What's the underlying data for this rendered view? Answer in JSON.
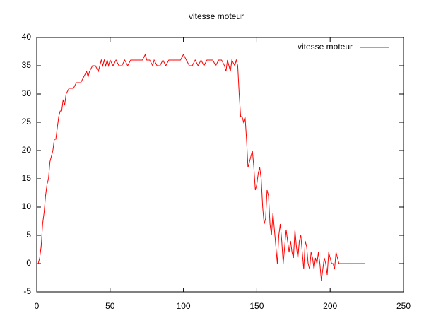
{
  "chart_data": {
    "type": "line",
    "title": "vitesse moteur",
    "x": [
      0,
      1,
      2,
      3,
      4,
      5,
      6,
      7,
      8,
      9,
      10,
      11,
      12,
      13,
      14,
      15,
      16,
      17,
      18,
      19,
      20,
      22,
      25,
      27,
      30,
      32,
      34,
      35,
      36,
      38,
      40,
      42,
      44,
      45,
      46,
      47,
      48,
      49,
      50,
      52,
      54,
      56,
      58,
      60,
      62,
      64,
      66,
      70,
      72,
      74,
      75,
      77,
      79,
      80,
      82,
      84,
      86,
      88,
      90,
      95,
      98,
      100,
      102,
      104,
      106,
      108,
      110,
      112,
      114,
      116,
      118,
      120,
      122,
      124,
      126,
      128,
      129,
      130,
      131,
      132,
      133,
      135,
      136,
      137,
      138,
      139,
      140,
      141,
      142,
      143,
      144,
      145,
      146,
      147,
      148,
      149,
      150,
      151,
      152,
      153,
      154,
      155,
      156,
      157,
      158,
      159,
      160,
      161,
      162,
      163,
      164,
      165,
      166,
      167,
      168,
      169,
      170,
      171,
      172,
      173,
      174,
      175,
      176,
      177,
      178,
      179,
      180,
      181,
      182,
      183,
      184,
      185,
      186,
      187,
      188,
      189,
      190,
      191,
      192,
      193,
      194,
      195,
      196,
      197,
      198,
      199,
      200,
      201,
      202,
      203,
      204,
      205,
      206,
      207,
      208,
      210,
      224
    ],
    "series": [
      {
        "name": "vitesse moteur",
        "color": "#ff0000",
        "values": [
          0,
          0,
          1,
          3,
          7,
          9,
          12,
          14,
          15,
          18,
          19,
          20,
          22,
          22,
          24,
          26,
          27,
          27,
          29,
          28,
          30,
          31,
          31,
          32,
          32,
          33,
          34,
          33,
          34,
          35,
          35,
          34,
          36,
          35,
          36,
          35,
          36,
          35,
          36,
          35,
          36,
          35,
          35,
          36,
          35,
          36,
          36,
          36,
          36,
          37,
          36,
          36,
          35,
          36,
          35,
          35,
          36,
          35,
          36,
          36,
          36,
          37,
          36,
          35,
          35,
          36,
          35,
          36,
          35,
          36,
          36,
          36,
          35,
          36,
          36,
          35,
          34,
          36,
          35,
          34,
          36,
          35,
          36,
          35,
          30,
          26,
          26,
          25,
          26,
          22,
          17,
          18,
          19,
          20,
          17,
          13,
          14,
          16,
          17,
          15,
          10,
          7,
          8,
          13,
          12,
          7,
          5,
          9,
          6,
          3,
          0,
          5,
          7,
          4,
          0,
          3,
          6,
          4,
          2,
          4,
          2,
          1,
          6,
          3,
          1,
          4,
          5,
          2,
          -1,
          4,
          3,
          0,
          -1,
          2,
          1,
          -1,
          1,
          0,
          2,
          0,
          -3,
          -1,
          1,
          0,
          -2,
          2,
          1,
          0,
          0,
          -1,
          2,
          1,
          0,
          0,
          0,
          0,
          0
        ]
      }
    ],
    "xlim": [
      0,
      250
    ],
    "xticks": [
      0,
      50,
      100,
      150,
      200,
      250
    ],
    "ylim": [
      -5,
      40
    ],
    "yticks": [
      -5,
      0,
      5,
      10,
      15,
      20,
      25,
      30,
      35,
      40
    ],
    "grid": false,
    "legend": "top-right"
  }
}
